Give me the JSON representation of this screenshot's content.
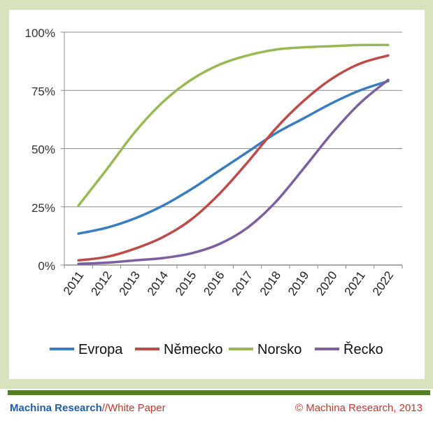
{
  "chart_data": {
    "type": "line",
    "title": "",
    "xlabel": "",
    "ylabel": "",
    "categories": [
      "2011",
      "2012",
      "2013",
      "2014",
      "2015",
      "2016",
      "2017",
      "2018",
      "2019",
      "2020",
      "2021",
      "2022"
    ],
    "ylim": [
      0,
      100
    ],
    "yticks": [
      0,
      25,
      50,
      75,
      100
    ],
    "ytick_labels": [
      "0%",
      "25%",
      "50%",
      "75%",
      "100%"
    ],
    "grid": true,
    "legend_position": "bottom",
    "series": [
      {
        "name": "Evropa",
        "color": "#3a7cc0",
        "values": [
          13.5,
          16,
          20,
          25.5,
          32.5,
          40.5,
          48.5,
          56.5,
          63,
          69.5,
          75,
          79
        ]
      },
      {
        "name": "Německo",
        "color": "#be4b48",
        "values": [
          2,
          3.5,
          7,
          12,
          19.5,
          30.5,
          44,
          58.5,
          70.5,
          80,
          86.5,
          90
        ]
      },
      {
        "name": "Norsko",
        "color": "#98b954",
        "values": [
          25.5,
          41,
          57,
          70,
          79.5,
          86,
          90,
          92.5,
          93.5,
          94,
          94.5,
          94.5
        ]
      },
      {
        "name": "Řecko",
        "color": "#7d5fa0",
        "values": [
          0.5,
          1,
          2,
          3,
          5,
          9,
          16,
          27,
          41.5,
          56.5,
          69.5,
          79.5
        ]
      }
    ]
  },
  "footer": {
    "brand": "Machina Research",
    "separator": "//",
    "doc_type": "White Paper",
    "copyright": "© Machina Research, 2013"
  }
}
